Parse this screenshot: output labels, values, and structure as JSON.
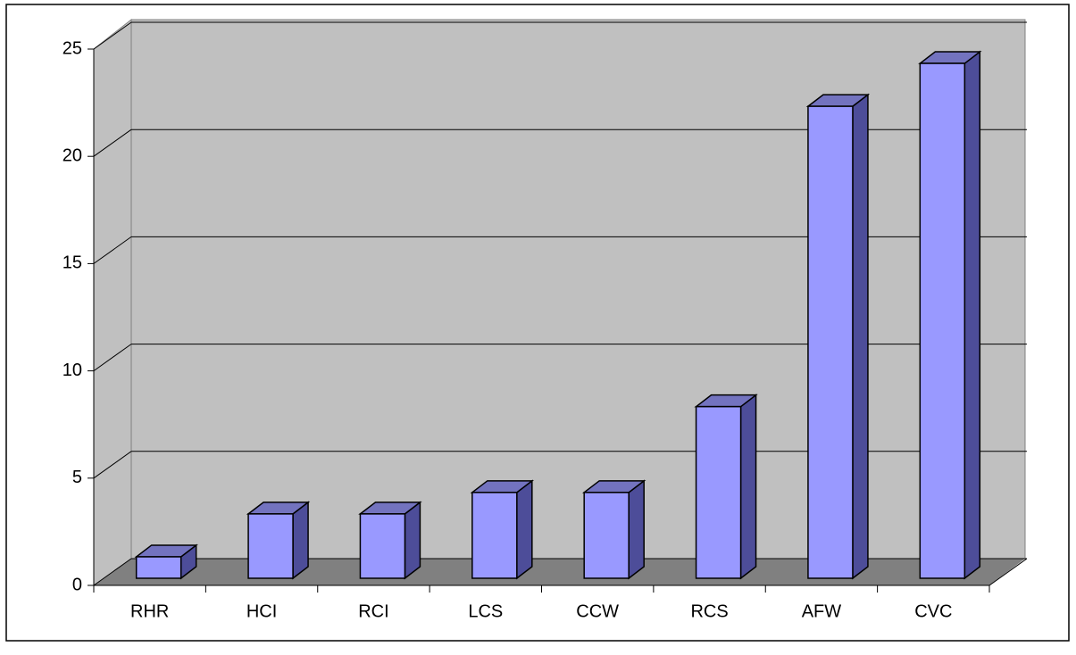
{
  "chart_data": {
    "type": "bar3d",
    "categories": [
      "RHR",
      "HCI",
      "RCI",
      "LCS",
      "CCW",
      "RCS",
      "AFW",
      "CVC"
    ],
    "values": [
      1,
      3,
      3,
      4,
      4,
      8,
      22,
      24
    ],
    "color": "#9999ff",
    "ylim": [
      0,
      25
    ],
    "yticks": [
      0,
      5,
      10,
      15,
      20,
      25
    ],
    "grid": true
  }
}
